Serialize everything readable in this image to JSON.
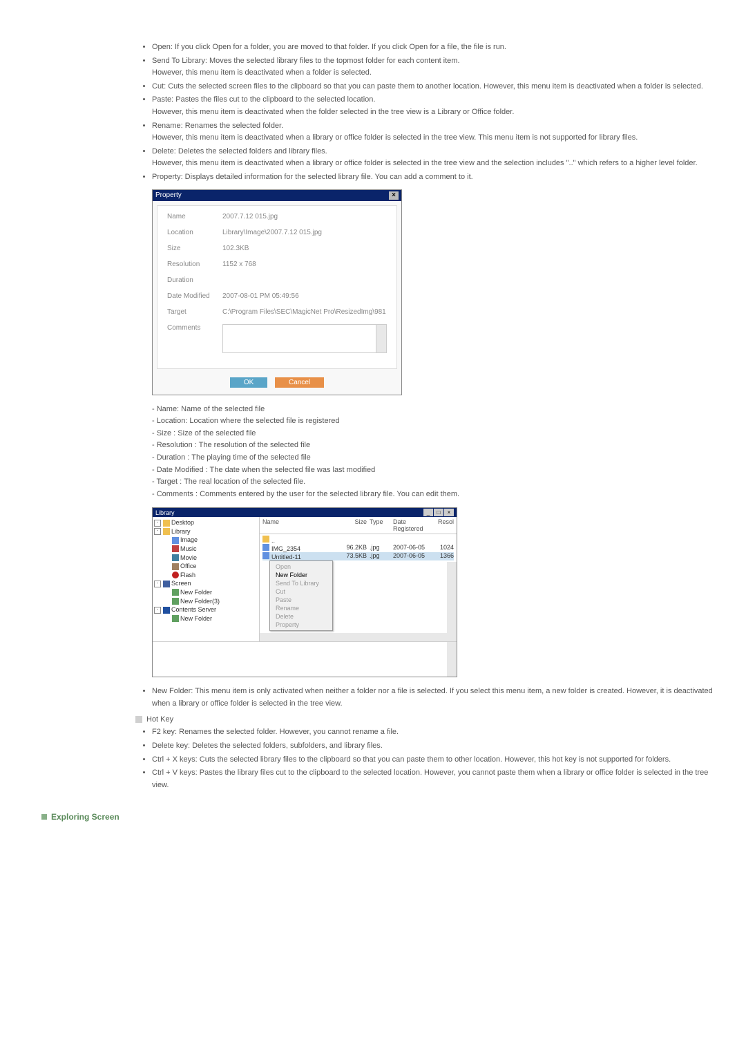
{
  "menu_items": [
    "Open: If you click Open for a folder, you are moved to that folder. If you click Open for a file, the file is run.",
    "Send To Library: Moves the selected library files to the topmost folder for each content item.\nHowever, this menu item is deactivated when a folder is selected.",
    "Cut: Cuts the selected screen files to the clipboard so that you can paste them to another location. However, this menu item is deactivated when a folder is selected.",
    "Paste: Pastes the files cut to the clipboard to the selected location.\nHowever, this menu item is deactivated when the folder selected in the tree view is a Library or Office folder.",
    "Rename: Renames the selected folder.\nHowever, this menu item is deactivated when a library or office folder is selected in the tree view. This menu item is not supported for library files.",
    "Delete: Deletes the selected folders and library files.\nHowever, this menu item is deactivated when a library or office folder is selected in the tree view and the selection includes \"..\" which refers to a higher level folder.",
    "Property: Displays detailed information for the selected library file. You can add a comment to it."
  ],
  "property_dialog": {
    "title": "Property",
    "rows": {
      "name_label": "Name",
      "name_value": "2007.7.12 015.jpg",
      "location_label": "Location",
      "location_value": "Library\\Image\\2007.7.12 015.jpg",
      "size_label": "Size",
      "size_value": "102.3KB",
      "resolution_label": "Resolution",
      "resolution_value": "1152 x 768",
      "duration_label": "Duration",
      "duration_value": "",
      "modified_label": "Date Modified",
      "modified_value": "2007-08-01 PM 05:49:56",
      "target_label": "Target",
      "target_value": "C:\\Program Files\\SEC\\MagicNet Pro\\ResizedImg\\981",
      "comments_label": "Comments"
    },
    "ok": "OK",
    "cancel": "Cancel"
  },
  "field_descriptions": [
    "- Name: Name of the selected file",
    "- Location: Location where the selected file is registered",
    "- Size : Size of the selected file",
    "- Resolution : The resolution of the selected file",
    "- Duration : The playing time of the selected file",
    "- Date Modified : The date when the selected file was last modified",
    "- Target : The real location of the selected file.",
    "- Comments : Comments entered by the user for the selected library file. You can edit them."
  ],
  "library_window": {
    "title": "Library",
    "tree": [
      {
        "indent": 0,
        "icon": "ti-folder",
        "exp": "-",
        "label": "Desktop"
      },
      {
        "indent": 0,
        "icon": "ti-folder",
        "exp": "-",
        "label": "Library"
      },
      {
        "indent": 1,
        "icon": "ti-image",
        "label": "Image"
      },
      {
        "indent": 1,
        "icon": "ti-music",
        "label": "Music"
      },
      {
        "indent": 1,
        "icon": "ti-movie",
        "label": "Movie"
      },
      {
        "indent": 1,
        "icon": "ti-office",
        "label": "Office"
      },
      {
        "indent": 1,
        "icon": "ti-flash",
        "label": "Flash"
      },
      {
        "indent": 0,
        "icon": "ti-screen",
        "exp": "-",
        "label": "Screen"
      },
      {
        "indent": 1,
        "icon": "ti-new",
        "label": "New Folder"
      },
      {
        "indent": 1,
        "icon": "ti-new",
        "label": "New Folder(3)"
      },
      {
        "indent": 0,
        "icon": "ti-server",
        "exp": "-",
        "label": "Contents Server"
      },
      {
        "indent": 1,
        "icon": "ti-new",
        "label": "New Folder"
      }
    ],
    "columns": {
      "name": "Name",
      "size": "Size",
      "type": "Type",
      "date": "Date Registered",
      "res": "Resol"
    },
    "rows": [
      {
        "name": "..",
        "size": "",
        "type": "",
        "date": "",
        "res": "",
        "icon": "ti-folder"
      },
      {
        "name": "IMG_2354",
        "size": "96.2KB",
        "type": ".jpg",
        "date": "2007-06-05",
        "res": "1024",
        "icon": "ti-image"
      },
      {
        "name": "Untitled-11",
        "size": "73.5KB",
        "type": ".jpg",
        "date": "2007-06-05",
        "res": "1366",
        "icon": "ti-image",
        "sel": true
      }
    ],
    "context_menu": [
      "Open",
      "New Folder",
      "Send To Library",
      "Cut",
      "Paste",
      "Rename",
      "Delete",
      "Property"
    ],
    "context_active": 1
  },
  "new_folder_item": "New Folder: This menu item is only activated when neither a folder nor a file is selected. If you select this menu item, a new folder is created. However, it is deactivated when a library or office folder is selected in the tree view.",
  "hotkey_title": "Hot Key",
  "hotkey_items": [
    "F2 key: Renames the selected folder. However, you cannot rename a file.",
    "Delete key: Deletes the selected folders, subfolders, and library files.",
    "Ctrl + X keys: Cuts the selected library files to the clipboard so that you can paste them to other location. However, this hot key is not supported for folders.",
    "Ctrl + V keys: Pastes the library files cut to the clipboard to the selected location. However, you cannot paste them when a library or office folder is selected in the tree view."
  ],
  "exploring_screen": "Exploring Screen"
}
